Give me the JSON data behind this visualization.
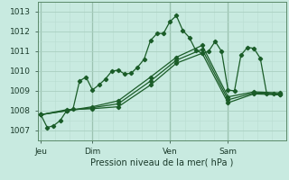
{
  "xlabel": "Pression niveau de la mer( hPa )",
  "ylim": [
    1006.5,
    1013.5
  ],
  "yticks": [
    1007,
    1008,
    1009,
    1010,
    1011,
    1012,
    1013
  ],
  "bg_color": "#c8eae0",
  "grid_major_color": "#aacfc0",
  "grid_minor_color": "#b8ddd0",
  "line_color": "#1a5c28",
  "xtick_labels": [
    "Jeu",
    "Dim",
    "Ven",
    "Sam"
  ],
  "xtick_positions": [
    0,
    8,
    20,
    29
  ],
  "vline_positions": [
    0,
    8,
    20,
    29
  ],
  "xlim": [
    -0.5,
    38
  ],
  "line1_x": [
    0,
    1,
    2,
    3,
    4,
    5,
    6,
    7,
    8,
    9,
    10,
    11,
    12,
    13,
    14,
    15,
    16,
    17,
    18,
    19,
    20,
    21,
    22,
    23,
    24,
    25,
    26,
    27,
    28,
    29,
    30,
    31,
    32,
    33,
    34,
    35,
    36,
    37
  ],
  "line1_y": [
    1007.8,
    1007.15,
    1007.25,
    1007.5,
    1008.0,
    1008.1,
    1009.5,
    1009.7,
    1009.05,
    1009.3,
    1009.6,
    1010.0,
    1010.05,
    1009.85,
    1009.9,
    1010.2,
    1010.6,
    1011.55,
    1011.9,
    1011.9,
    1012.5,
    1012.8,
    1012.05,
    1011.7,
    1011.05,
    1010.9,
    1011.0,
    1011.5,
    1011.0,
    1009.05,
    1009.0,
    1010.8,
    1011.2,
    1011.15,
    1010.65,
    1008.85,
    1008.85,
    1008.8
  ],
  "line2_x": [
    0,
    4,
    8,
    12,
    17,
    21,
    25,
    29,
    33,
    37
  ],
  "line2_y": [
    1007.8,
    1008.05,
    1008.1,
    1008.2,
    1009.3,
    1010.4,
    1010.9,
    1008.4,
    1008.85,
    1008.8
  ],
  "line3_x": [
    0,
    4,
    8,
    12,
    17,
    21,
    25,
    29,
    33,
    37
  ],
  "line3_y": [
    1007.8,
    1008.0,
    1008.15,
    1008.35,
    1009.5,
    1010.55,
    1011.1,
    1008.55,
    1008.9,
    1008.85
  ],
  "line4_x": [
    0,
    4,
    8,
    12,
    17,
    21,
    25,
    29,
    33,
    37
  ],
  "line4_y": [
    1007.8,
    1008.0,
    1008.2,
    1008.5,
    1009.7,
    1010.7,
    1011.3,
    1008.7,
    1008.95,
    1008.9
  ]
}
